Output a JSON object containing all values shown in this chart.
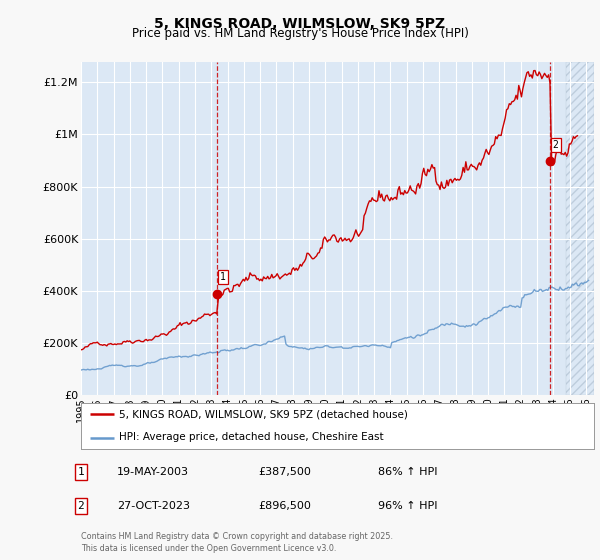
{
  "title": "5, KINGS ROAD, WILMSLOW, SK9 5PZ",
  "subtitle": "Price paid vs. HM Land Registry's House Price Index (HPI)",
  "ylabel_ticks": [
    "£0",
    "£200K",
    "£400K",
    "£600K",
    "£800K",
    "£1M",
    "£1.2M"
  ],
  "ytick_values": [
    0,
    200000,
    400000,
    600000,
    800000,
    1000000,
    1200000
  ],
  "ylim": [
    0,
    1280000
  ],
  "xlim_start": 1995.0,
  "xlim_end": 2026.5,
  "background_color": "#dce8f5",
  "plot_background": "#dce8f5",
  "hatch_color": "#c0d0e8",
  "red_line_color": "#cc0000",
  "blue_line_color": "#6699cc",
  "marker1_x": 2003.38,
  "marker1_y": 387500,
  "marker2_x": 2023.82,
  "marker2_y": 896500,
  "hatch_start": 2024.75,
  "legend_label_red": "5, KINGS ROAD, WILMSLOW, SK9 5PZ (detached house)",
  "legend_label_blue": "HPI: Average price, detached house, Cheshire East",
  "annotation1_label": "1",
  "annotation1_date": "19-MAY-2003",
  "annotation1_price": "£387,500",
  "annotation1_hpi": "86% ↑ HPI",
  "annotation2_label": "2",
  "annotation2_date": "27-OCT-2023",
  "annotation2_price": "£896,500",
  "annotation2_hpi": "96% ↑ HPI",
  "footer": "Contains HM Land Registry data © Crown copyright and database right 2025.\nThis data is licensed under the Open Government Licence v3.0.",
  "grid_color": "#ffffff",
  "legend_border_color": "#aaaaaa",
  "fig_bg": "#f8f8f8"
}
